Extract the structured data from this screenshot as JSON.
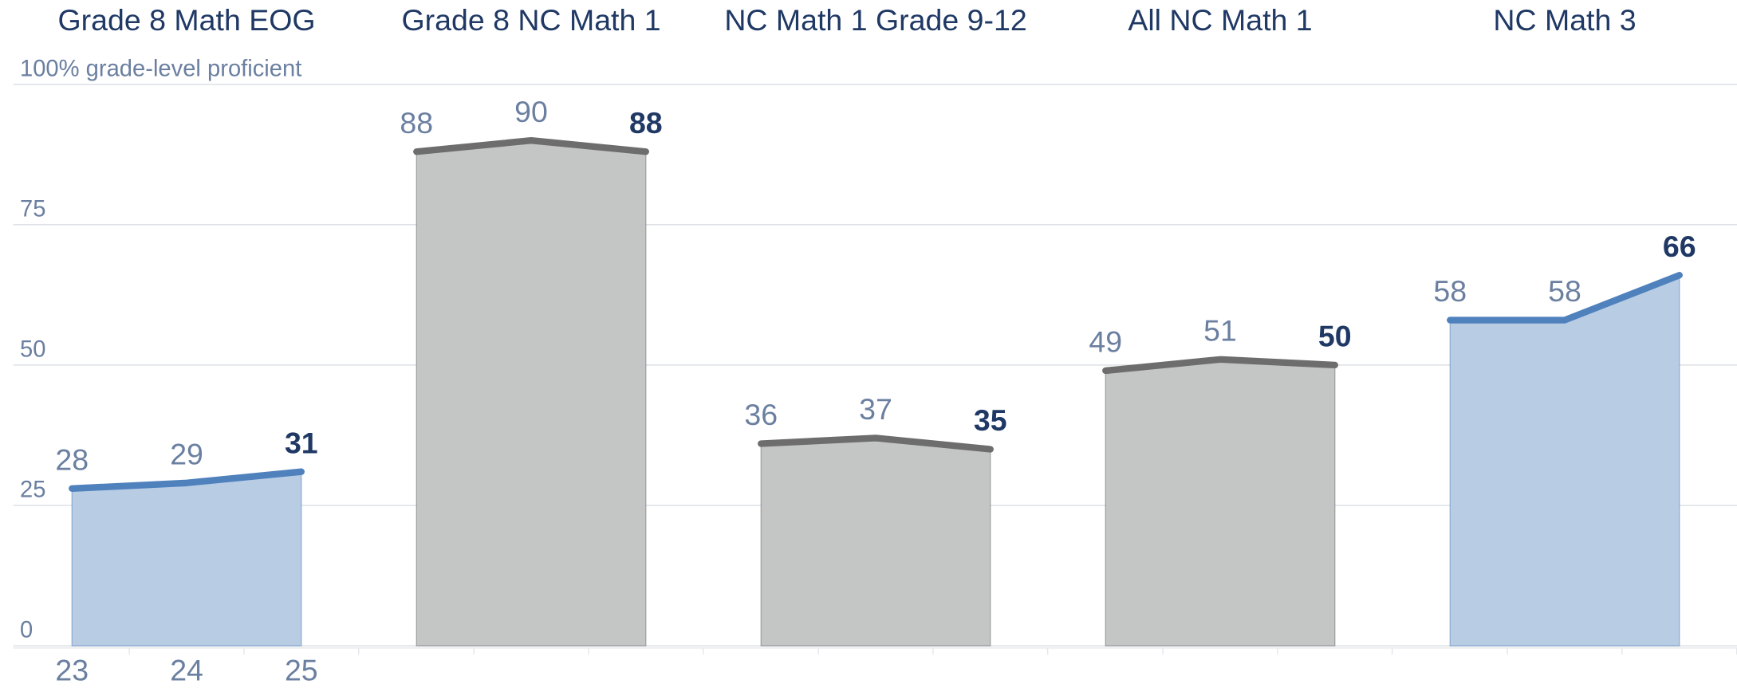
{
  "chart_data": {
    "type": "area",
    "ylim": [
      0,
      100
    ],
    "yticks": [
      0,
      25,
      50,
      75,
      {
        "value": 100,
        "label": "100% grade-level proficient"
      }
    ],
    "grid": true,
    "panels": [
      {
        "title": "Grade 8 Math EOG",
        "categories": [
          "23",
          "24",
          "25"
        ],
        "values": [
          28,
          29,
          31
        ],
        "line_color": "#4f81bd",
        "fill_color": "#b8cce4"
      },
      {
        "title": "Grade 8 NC Math 1",
        "categories": [
          null,
          null,
          null
        ],
        "values": [
          88,
          90,
          88
        ],
        "line_color": "#6d6d6d",
        "fill_color": "#c4c5c5"
      },
      {
        "title": "NC Math 1 Grade 9-12",
        "categories": [
          null,
          null,
          null
        ],
        "values": [
          36,
          37,
          35
        ],
        "line_color": "#6d6d6d",
        "fill_color": "#c4c5c5"
      },
      {
        "title": "All NC Math 1",
        "categories": [
          null,
          null,
          null
        ],
        "values": [
          49,
          51,
          50
        ],
        "line_color": "#6d6d6d",
        "fill_color": "#c4c5c5"
      },
      {
        "title": "NC Math 3",
        "categories": [
          null,
          null,
          null
        ],
        "values": [
          58,
          58,
          66
        ],
        "line_color": "#4f81bd",
        "fill_color": "#b8cce4"
      }
    ]
  }
}
